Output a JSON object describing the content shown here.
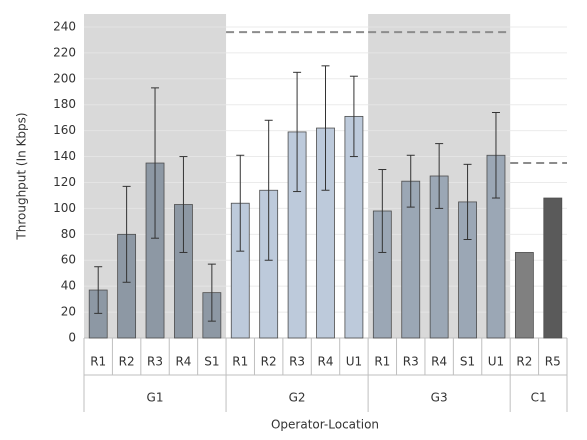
{
  "chart_data": {
    "type": "bar",
    "y_label": "Throughput (In Kbps)",
    "x_label": "Operator-Location",
    "ylim": [
      0,
      250
    ],
    "yticks": [
      0,
      20,
      40,
      60,
      80,
      100,
      120,
      140,
      160,
      180,
      200,
      220,
      240
    ],
    "grid": true,
    "groups": [
      {
        "name": "G1",
        "shaded": true,
        "color": "#8d98a4",
        "categories": [
          "R1",
          "R2",
          "R3",
          "R4",
          "S1"
        ],
        "values": [
          37,
          80,
          135,
          103,
          35
        ],
        "errors": [
          18,
          37,
          58,
          37,
          22
        ],
        "reference": null
      },
      {
        "name": "G2",
        "shaded": false,
        "color": "#bdcadb",
        "categories": [
          "R1",
          "R2",
          "R3",
          "R4",
          "U1"
        ],
        "values": [
          104,
          114,
          159,
          162,
          171
        ],
        "errors": [
          37,
          54,
          46,
          48,
          31
        ],
        "reference": 236
      },
      {
        "name": "G3",
        "shaded": true,
        "color": "#9ba7b5",
        "categories": [
          "R1",
          "R3",
          "R4",
          "S1",
          "U1"
        ],
        "values": [
          98,
          121,
          125,
          105,
          141
        ],
        "errors": [
          32,
          20,
          25,
          29,
          33
        ],
        "reference": 236
      },
      {
        "name": "C1",
        "shaded": false,
        "colors": [
          "#808080",
          "#5a5a5a"
        ],
        "categories": [
          "R2",
          "R5"
        ],
        "values": [
          66,
          108
        ],
        "errors": [
          null,
          null
        ],
        "reference": 135
      }
    ]
  }
}
